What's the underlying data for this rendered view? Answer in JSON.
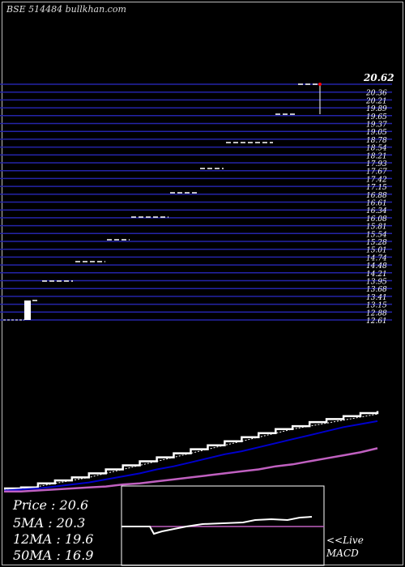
{
  "header": {
    "title": "BSE 514484  bullkhan.com"
  },
  "price_chart": {
    "last_price_label": "20.62",
    "levels": [
      "20.62",
      "20.36",
      "20.21",
      "19.89",
      "19.65",
      "19.37",
      "19.05",
      "18.78",
      "18.54",
      "18.21",
      "17.93",
      "17.67",
      "17.42",
      "17.15",
      "16.88",
      "16.61",
      "16.34",
      "16.08",
      "15.81",
      "15.54",
      "15.28",
      "15.01",
      "14.74",
      "14.48",
      "14.21",
      "13.95",
      "13.68",
      "13.41",
      "13.15",
      "12.88",
      "12.61"
    ]
  },
  "stats": {
    "price": "Price  : 20.6",
    "ma5": "5MA : 20.3",
    "ma12": "12MA : 19.6",
    "ma50": "50MA : 16.9"
  },
  "macd": {
    "live_label": "<<Live",
    "macd_label": "MACD"
  },
  "colors": {
    "ma_blue": "#0000cc",
    "ma_violet": "#c060c0",
    "grid": "#2424a8",
    "candle_up": "#ffffff",
    "spike": "#ff0000"
  },
  "chart_data": {
    "type": "line",
    "title": "BSE 514484",
    "ylim": [
      12.5,
      20.8
    ],
    "series": [
      {
        "name": "Price",
        "values": [
          12.9,
          13.0,
          13.4,
          13.7,
          14.0,
          14.4,
          14.8,
          15.2,
          15.6,
          16.0,
          16.4,
          16.8,
          17.2,
          17.6,
          18.0,
          18.4,
          18.8,
          19.1,
          19.5,
          19.8,
          20.1,
          20.4,
          20.6
        ]
      },
      {
        "name": "5MA",
        "values": [
          12.8,
          12.9,
          13.1,
          13.4,
          13.7,
          14.0,
          14.4,
          14.8,
          15.2,
          15.6,
          16.0,
          16.4,
          16.8,
          17.2,
          17.6,
          18.0,
          18.4,
          18.8,
          19.1,
          19.4,
          19.7,
          20.0,
          20.3
        ]
      },
      {
        "name": "12MA",
        "values": [
          12.7,
          12.8,
          12.9,
          13.1,
          13.3,
          13.5,
          13.8,
          14.1,
          14.4,
          14.8,
          15.1,
          15.5,
          15.9,
          16.3,
          16.6,
          17.0,
          17.4,
          17.8,
          18.2,
          18.6,
          19.0,
          19.3,
          19.6
        ]
      },
      {
        "name": "50MA",
        "values": [
          12.6,
          12.6,
          12.7,
          12.8,
          12.9,
          13.0,
          13.1,
          13.3,
          13.4,
          13.6,
          13.8,
          14.0,
          14.2,
          14.4,
          14.6,
          14.8,
          15.1,
          15.3,
          15.6,
          15.9,
          16.2,
          16.5,
          16.9
        ]
      }
    ]
  }
}
